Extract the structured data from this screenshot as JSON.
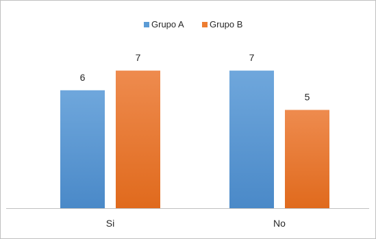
{
  "chart_data": {
    "type": "bar",
    "categories": [
      "Si",
      "No"
    ],
    "series": [
      {
        "name": "Grupo A",
        "values": [
          6,
          7
        ],
        "color": "#5b9bd5"
      },
      {
        "name": "Grupo B",
        "values": [
          7,
          5
        ],
        "color": "#ed7d31"
      }
    ],
    "ylim": [
      0,
      8
    ],
    "grid": false,
    "legend": "top-center",
    "data_labels": true
  }
}
